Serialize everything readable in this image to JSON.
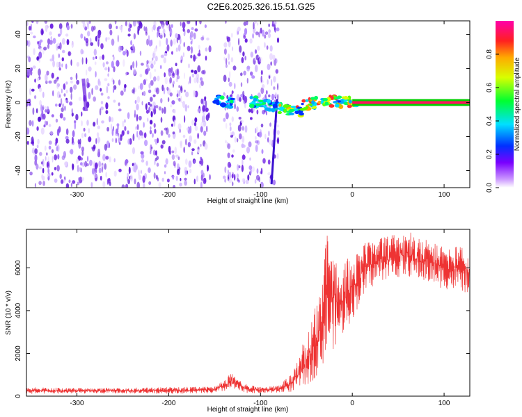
{
  "title": "C2E6.2025.326.15.51.G25",
  "chart_data": [
    {
      "type": "heatmap",
      "xlabel": "Height of straight line (km)",
      "ylabel": "Frequency (Hz)",
      "xlim": [
        -355,
        128
      ],
      "ylim": [
        -50,
        48
      ],
      "xticks": [
        -300,
        -200,
        -100,
        0,
        100
      ],
      "yticks": [
        -40,
        -20,
        0,
        20,
        40
      ],
      "colorbar": {
        "label": "Normalized spectral amplitude",
        "range": [
          0.0,
          1.0
        ],
        "ticks": [
          "0.0",
          "0.2",
          "0.4",
          "0.6",
          "0.8"
        ],
        "tick_values": [
          0.0,
          0.2,
          0.4,
          0.6,
          0.8
        ]
      },
      "regions": [
        {
          "x": [
            -355,
            -155
          ],
          "freq": [
            -50,
            48
          ],
          "amplitude": 0.05,
          "kind": "noise"
        },
        {
          "x": [
            -140,
            -80
          ],
          "freq": [
            -50,
            48
          ],
          "amplitude": 0.05,
          "kind": "noise"
        },
        {
          "x": [
            -150,
            -130
          ],
          "freq": [
            -4,
            5
          ],
          "amplitude": 0.35
        },
        {
          "x": [
            -110,
            -60
          ],
          "freq": [
            -12,
            4
          ],
          "amplitude": 0.45
        },
        {
          "x": [
            -60,
            5
          ],
          "freq": [
            -8,
            4
          ],
          "amplitude": 0.8
        },
        {
          "x": [
            0,
            128
          ],
          "freq": [
            -1,
            1
          ],
          "amplitude": 1.0,
          "kind": "carrier"
        }
      ]
    },
    {
      "type": "line",
      "xlabel": "Height of straight line (km)",
      "ylabel": "SNR (10 * v/v)",
      "xlim": [
        -355,
        128
      ],
      "ylim": [
        0,
        7800
      ],
      "xticks": [
        -300,
        -200,
        -100,
        0,
        100
      ],
      "yticks": [
        0,
        2000,
        4000,
        6000
      ],
      "color": "#ee3333",
      "envelope": [
        {
          "x": -355,
          "low": 100,
          "high": 420
        },
        {
          "x": -300,
          "low": 120,
          "high": 380
        },
        {
          "x": -250,
          "low": 120,
          "high": 400
        },
        {
          "x": -200,
          "low": 120,
          "high": 420
        },
        {
          "x": -150,
          "low": 120,
          "high": 450
        },
        {
          "x": -130,
          "low": 300,
          "high": 1150
        },
        {
          "x": -120,
          "low": 150,
          "high": 600
        },
        {
          "x": -100,
          "low": 130,
          "high": 450
        },
        {
          "x": -80,
          "low": 150,
          "high": 500
        },
        {
          "x": -65,
          "low": 200,
          "high": 1100
        },
        {
          "x": -55,
          "low": 400,
          "high": 2300
        },
        {
          "x": -45,
          "low": 600,
          "high": 3600
        },
        {
          "x": -35,
          "low": 1200,
          "high": 4800
        },
        {
          "x": -28,
          "low": 1800,
          "high": 7800
        },
        {
          "x": -15,
          "low": 2500,
          "high": 6200
        },
        {
          "x": 0,
          "low": 3600,
          "high": 6600
        },
        {
          "x": 15,
          "low": 4800,
          "high": 7200
        },
        {
          "x": 30,
          "low": 5400,
          "high": 7400
        },
        {
          "x": 60,
          "low": 5600,
          "high": 7700
        },
        {
          "x": 80,
          "low": 5300,
          "high": 7400
        },
        {
          "x": 100,
          "low": 5000,
          "high": 7100
        },
        {
          "x": 128,
          "low": 4800,
          "high": 6900
        }
      ]
    }
  ]
}
